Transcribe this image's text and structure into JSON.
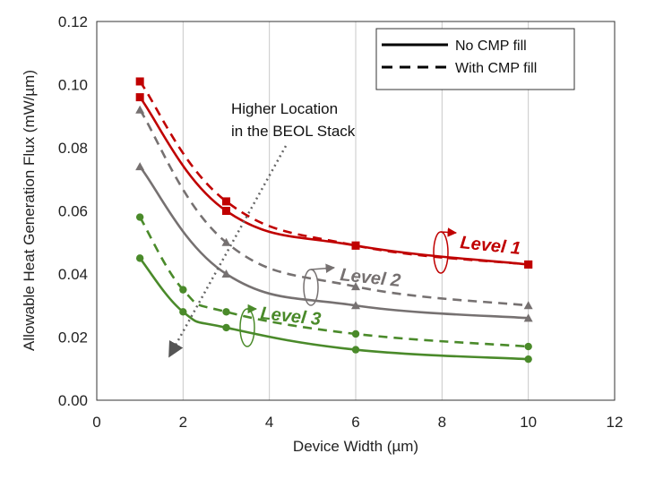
{
  "chart_data": {
    "type": "line",
    "xlabel": "Device Width (µm)",
    "ylabel": "Allowable Heat Generation Flux (mW/µm)",
    "xlim": [
      0,
      12
    ],
    "ylim": [
      0,
      0.12
    ],
    "x_ticks": [
      "0",
      "2",
      "4",
      "6",
      "8",
      "10",
      "12"
    ],
    "y_ticks": [
      "0.00",
      "0.02",
      "0.04",
      "0.06",
      "0.08",
      "0.10",
      "0.12"
    ],
    "grid": "vertical",
    "legend": {
      "position": "top-right",
      "entries": [
        {
          "label": "No CMP fill",
          "style": "solid"
        },
        {
          "label": "With CMP fill",
          "style": "dashed"
        }
      ]
    },
    "annotations": {
      "arrow_text_line1": "Higher  Location",
      "arrow_text_line2": "in the BEOL Stack",
      "level1": "Level 1",
      "level2": "Level 2",
      "level3": "Level 3"
    },
    "series": [
      {
        "group": "level1",
        "style": "solid",
        "color": "#c00000",
        "marker": "square",
        "x": [
          1,
          3,
          6,
          10
        ],
        "y": [
          0.096,
          0.06,
          0.049,
          0.043
        ]
      },
      {
        "group": "level1",
        "style": "dashed",
        "color": "#c00000",
        "marker": "square",
        "x": [
          1,
          3,
          6,
          10
        ],
        "y": [
          0.101,
          0.063,
          0.049,
          0.043
        ]
      },
      {
        "group": "level2",
        "style": "solid",
        "color": "#767171",
        "marker": "triangle",
        "x": [
          1,
          3,
          6,
          10
        ],
        "y": [
          0.074,
          0.04,
          0.03,
          0.026
        ]
      },
      {
        "group": "level2",
        "style": "dashed",
        "color": "#767171",
        "marker": "triangle",
        "x": [
          1,
          3,
          6,
          10
        ],
        "y": [
          0.092,
          0.05,
          0.036,
          0.03
        ]
      },
      {
        "group": "level3",
        "style": "solid",
        "color": "#4a8a2a",
        "marker": "circle",
        "x": [
          1,
          2,
          3,
          6,
          10
        ],
        "y": [
          0.045,
          0.028,
          0.023,
          0.016,
          0.013
        ]
      },
      {
        "group": "level3",
        "style": "dashed",
        "color": "#4a8a2a",
        "marker": "circle",
        "x": [
          1,
          2,
          3,
          6,
          10
        ],
        "y": [
          0.058,
          0.035,
          0.028,
          0.021,
          0.017
        ]
      }
    ]
  }
}
